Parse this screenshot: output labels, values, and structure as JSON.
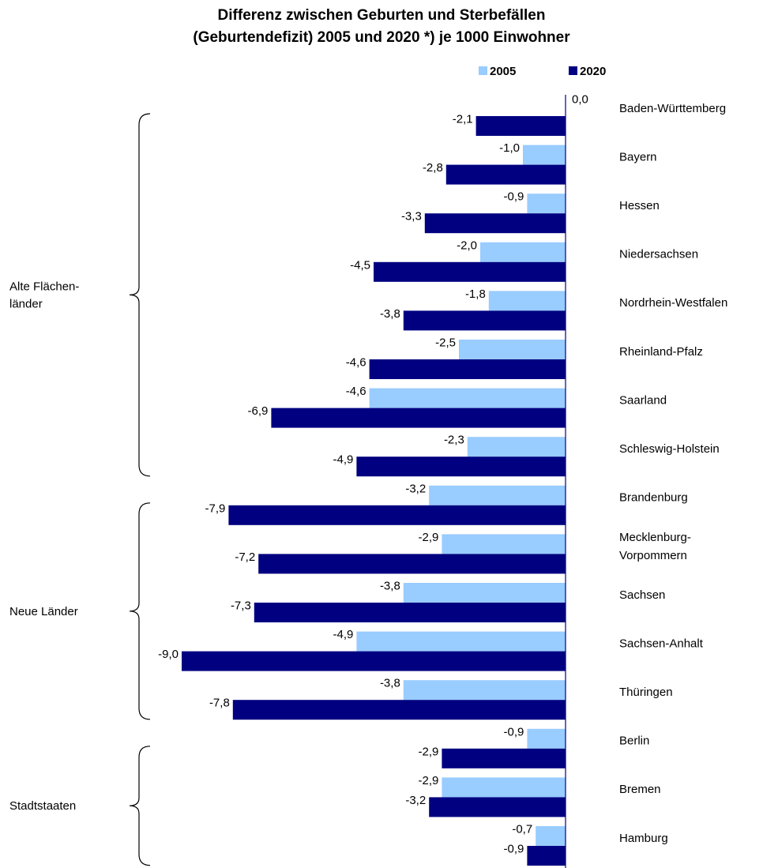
{
  "title_lines": [
    "Differenz zwischen Geburten und Sterbefällen",
    "(Geburtendefizit) 2005 und 2020 *) je 1000 Einwohner"
  ],
  "colors": {
    "s2005": "#99ccff",
    "s2020": "#000080",
    "axis": "#000080"
  },
  "chart_data": {
    "type": "bar",
    "orientation": "horizontal",
    "title": "Differenz zwischen Geburten und Sterbefällen (Geburtendefizit) 2005 und 2020 *) je 1000 Einwohner",
    "categories": [
      "Baden-Württemberg",
      "Bayern",
      "Hessen",
      "Niedersachsen",
      "Nordrhein-Westfalen",
      "Rheinland-Pfalz",
      "Saarland",
      "Schleswig-Holstein",
      "Brandenburg",
      "Mecklenburg-Vorpommern",
      "Sachsen",
      "Sachsen-Anhalt",
      "Thüringen",
      "Berlin",
      "Bremen",
      "Hamburg"
    ],
    "category_lines": [
      [
        "Baden-Württemberg"
      ],
      [
        "Bayern"
      ],
      [
        "Hessen"
      ],
      [
        "Niedersachsen"
      ],
      [
        "Nordrhein-Westfalen"
      ],
      [
        "Rheinland-Pfalz"
      ],
      [
        "Saarland"
      ],
      [
        "Schleswig-Holstein"
      ],
      [
        "Brandenburg"
      ],
      [
        "Mecklenburg-",
        "Vorpommern"
      ],
      [
        "Sachsen"
      ],
      [
        "Sachsen-Anhalt"
      ],
      [
        "Thüringen"
      ],
      [
        "Berlin"
      ],
      [
        "Bremen"
      ],
      [
        "Hamburg"
      ]
    ],
    "series": [
      {
        "name": "2005",
        "values": [
          0.0,
          -1.0,
          -0.9,
          -2.0,
          -1.8,
          -2.5,
          -4.6,
          -2.3,
          -3.2,
          -2.9,
          -3.8,
          -4.9,
          -3.8,
          -0.9,
          -2.9,
          -0.7
        ],
        "labels": [
          "0,0",
          "-1,0",
          "-0,9",
          "-2,0",
          "-1,8",
          "-2,5",
          "-4,6",
          "-2,3",
          "-3,2",
          "-2,9",
          "-3,8",
          "-4,9",
          "-3,8",
          "-0,9",
          "-2,9",
          "-0,7"
        ]
      },
      {
        "name": "2020",
        "values": [
          -2.1,
          -2.8,
          -3.3,
          -4.5,
          -3.8,
          -4.6,
          -6.9,
          -4.9,
          -7.9,
          -7.2,
          -7.3,
          -9.0,
          -7.8,
          -2.9,
          -3.2,
          -0.9
        ],
        "labels": [
          "-2,1",
          "-2,8",
          "-3,3",
          "-4,5",
          "-3,8",
          "-4,6",
          "-6,9",
          "-4,9",
          "-7,9",
          "-7,2",
          "-7,3",
          "-9,0",
          "-7,8",
          "-2,9",
          "-3,2",
          "-0,9"
        ]
      }
    ],
    "xlim": [
      -9.0,
      0.0
    ],
    "legend_position": "top",
    "groups": [
      {
        "lines": [
          "Alte Flächen-",
          "länder"
        ],
        "from": 0,
        "to": 7
      },
      {
        "lines": [
          "Neue Länder"
        ],
        "from": 8,
        "to": 12
      },
      {
        "lines": [
          "Stadtstaaten"
        ],
        "from": 13,
        "to": 15
      }
    ]
  }
}
